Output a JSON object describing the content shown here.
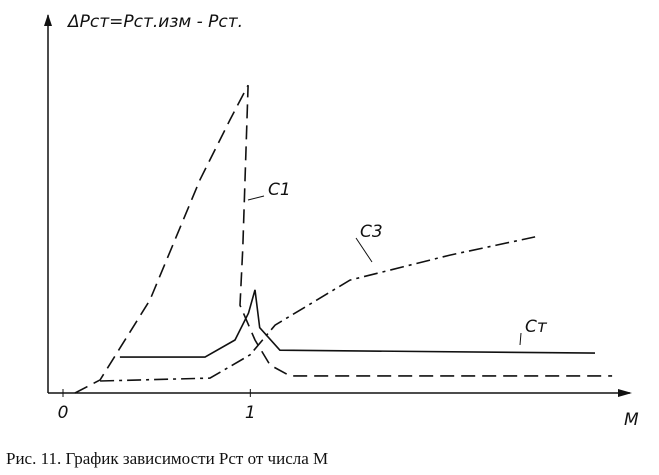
{
  "chart_data": {
    "type": "line",
    "title": "ΔPст=Pст.изм - Pст.",
    "x_label": "M",
    "caption": "Рис. 11. График зависимости Рст от числа М",
    "xlim": [
      -0.08,
      3.0
    ],
    "xticks": [
      0,
      1
    ],
    "ylim": [
      0,
      100
    ],
    "series": [
      {
        "name": "C1",
        "color": "#111111",
        "dash": "dashed",
        "x": [
          0.064,
          0.198,
          0.464,
          0.731,
          0.891,
          0.988,
          0.96,
          0.945,
          1.025,
          1.105,
          1.212,
          2.931
        ],
        "values": [
          0,
          3.6,
          25.6,
          58.7,
          75.2,
          84.8,
          40,
          24.2,
          14.6,
          7.7,
          4.7,
          4.7
        ]
      },
      {
        "name": "C3",
        "color": "#111111",
        "dash": "dashdot",
        "x": [
          0.198,
          0.785,
          0.998,
          1.132,
          1.532,
          2.066,
          2.52
        ],
        "values": [
          3.3,
          4.1,
          10.5,
          18.7,
          31.1,
          38.0,
          43.0
        ]
      },
      {
        "name": "Cт",
        "color": "#111111",
        "dash": "solid",
        "x": [
          0.304,
          0.758,
          0.918,
          0.99,
          1.025,
          1.05,
          1.158,
          2.84
        ],
        "values": [
          9.9,
          9.9,
          14.6,
          22,
          28.4,
          18,
          11.8,
          11.0
        ]
      }
    ]
  }
}
